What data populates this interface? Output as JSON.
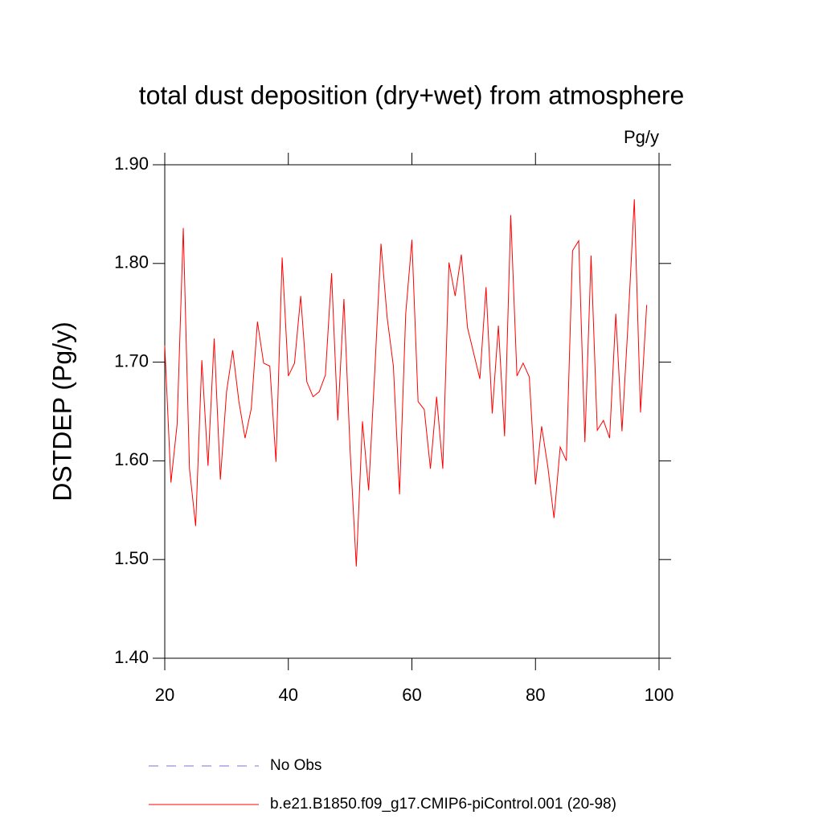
{
  "chart_data": {
    "type": "line",
    "title": "total dust deposition (dry+wet) from atmosphere",
    "units": "Pg/y",
    "y_label": "DSTDEP  (Pg/y)",
    "x": [
      20,
      21,
      22,
      23,
      24,
      25,
      26,
      27,
      28,
      29,
      30,
      31,
      32,
      33,
      34,
      35,
      36,
      37,
      38,
      39,
      40,
      41,
      42,
      43,
      44,
      45,
      46,
      47,
      48,
      49,
      50,
      51,
      52,
      53,
      54,
      55,
      56,
      57,
      58,
      59,
      60,
      61,
      62,
      63,
      64,
      65,
      66,
      67,
      68,
      69,
      70,
      71,
      72,
      73,
      74,
      75,
      76,
      77,
      78,
      79,
      80,
      81,
      82,
      83,
      84,
      85,
      86,
      87,
      88,
      89,
      90,
      91,
      92,
      93,
      94,
      95,
      96,
      97,
      98
    ],
    "series": [
      {
        "name": "No Obs",
        "color": "#7b6fd6",
        "dashed": true
      },
      {
        "name": "b.e21.B1850.f09_g17.CMIP6-piControl.001 (20-98)",
        "color": "#ff0000",
        "dashed": false,
        "values": [
          1.717,
          1.578,
          1.637,
          1.836,
          1.592,
          1.534,
          1.702,
          1.595,
          1.724,
          1.581,
          1.67,
          1.712,
          1.66,
          1.623,
          1.653,
          1.741,
          1.699,
          1.696,
          1.599,
          1.806,
          1.686,
          1.699,
          1.767,
          1.68,
          1.665,
          1.67,
          1.687,
          1.79,
          1.641,
          1.764,
          1.611,
          1.493,
          1.64,
          1.57,
          1.692,
          1.82,
          1.745,
          1.696,
          1.566,
          1.749,
          1.824,
          1.66,
          1.652,
          1.592,
          1.665,
          1.592,
          1.801,
          1.767,
          1.809,
          1.735,
          1.709,
          1.683,
          1.776,
          1.648,
          1.737,
          1.625,
          1.849,
          1.686,
          1.699,
          1.685,
          1.576,
          1.635,
          1.594,
          1.542,
          1.614,
          1.6,
          1.813,
          1.823,
          1.619,
          1.808,
          1.631,
          1.641,
          1.623,
          1.749,
          1.63,
          1.741,
          1.865,
          1.649,
          1.758
        ]
      }
    ],
    "xlim": [
      20,
      100
    ],
    "xticks": [
      20,
      40,
      60,
      80,
      100
    ],
    "ylim": [
      1.4,
      1.9
    ],
    "yticks": [
      {
        "value": 1.4,
        "label": "1.40"
      },
      {
        "value": 1.5,
        "label": "1.50"
      },
      {
        "value": 1.6,
        "label": "1.60"
      },
      {
        "value": 1.7,
        "label": "1.70"
      },
      {
        "value": 1.8,
        "label": "1.80"
      },
      {
        "value": 1.9,
        "label": "1.90"
      }
    ]
  }
}
